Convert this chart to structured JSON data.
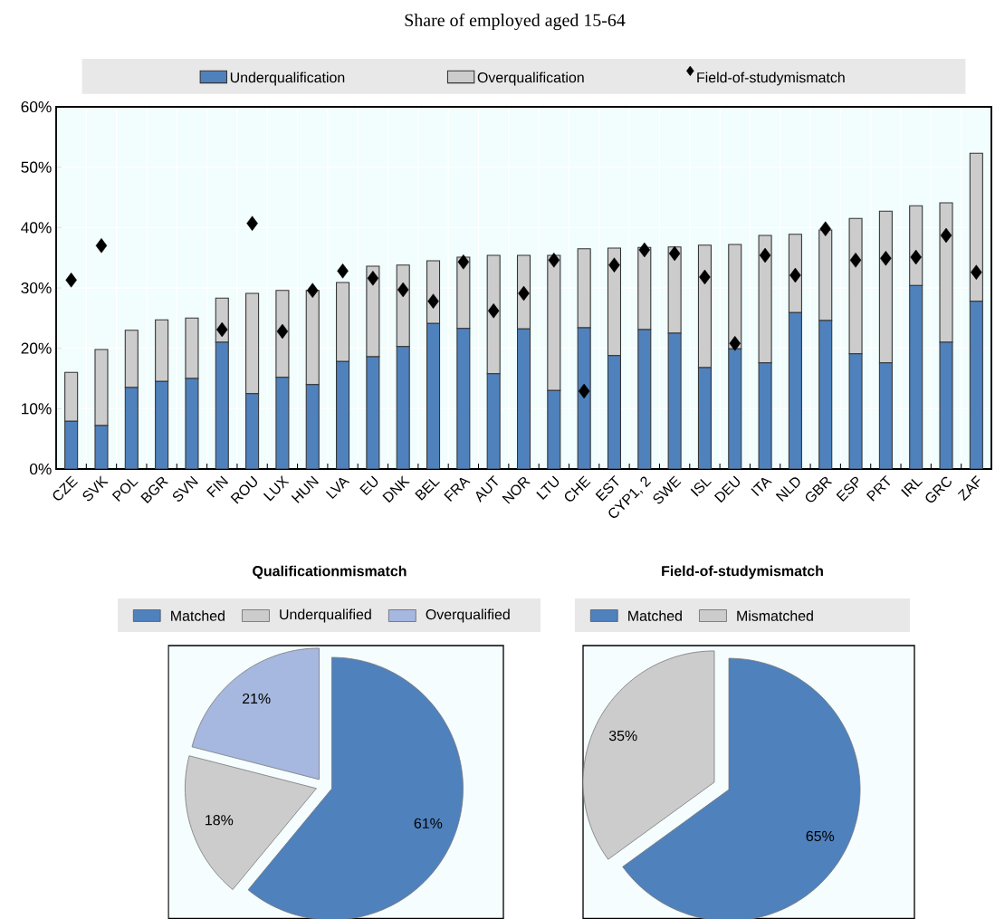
{
  "chart_data": [
    {
      "type": "bar",
      "title": "Share of employed aged 15-64",
      "stacked": true,
      "legend": "top",
      "grid": true,
      "categories": [
        "CZE",
        "SVK",
        "POL",
        "BGR",
        "SVN",
        "FIN",
        "ROU",
        "LUX",
        "HUN",
        "LVA",
        "EU",
        "DNK",
        "BEL",
        "FRA",
        "AUT",
        "NOR",
        "LTU",
        "CHE",
        "EST",
        "CYP1, 2",
        "SWE",
        "ISL",
        "DEU",
        "ITA",
        "NLD",
        "GBR",
        "ESP",
        "PRT",
        "IRL",
        "GRC",
        "ZAF"
      ],
      "series": [
        {
          "name": "Underqualification",
          "color": "#4f81bd",
          "values": [
            7.9,
            7.2,
            13.5,
            14.5,
            15.0,
            21.0,
            12.5,
            15.2,
            14.0,
            17.8,
            18.6,
            20.3,
            24.1,
            23.3,
            15.8,
            23.2,
            13.0,
            23.4,
            18.8,
            23.1,
            22.5,
            16.8,
            19.9,
            17.6,
            25.9,
            24.6,
            19.1,
            17.6,
            30.4,
            21.0,
            27.8
          ]
        },
        {
          "name": "Overqualification",
          "color": "#cccccc",
          "values": [
            8.1,
            12.6,
            9.5,
            10.2,
            10.0,
            7.3,
            16.6,
            14.4,
            15.6,
            13.1,
            15.0,
            13.5,
            10.4,
            11.8,
            19.6,
            12.2,
            22.4,
            13.1,
            17.8,
            13.6,
            14.3,
            20.3,
            17.3,
            21.1,
            13.0,
            15.0,
            22.4,
            25.1,
            13.2,
            23.1,
            24.5
          ]
        },
        {
          "name": "Field-of-studymismatch",
          "type": "scatter",
          "marker": "diamond",
          "color": "#000000",
          "values": [
            31.3,
            37.0,
            null,
            null,
            null,
            23.1,
            40.7,
            22.8,
            29.6,
            32.8,
            31.6,
            29.7,
            27.8,
            34.3,
            26.2,
            29.1,
            34.6,
            12.9,
            33.8,
            36.3,
            35.7,
            31.8,
            20.8,
            35.4,
            32.1,
            39.8,
            34.6,
            34.9,
            35.1,
            38.7,
            32.6
          ]
        }
      ],
      "ylim": [
        0,
        60
      ],
      "yticks": [
        {
          "value": 0,
          "label": "0%"
        },
        {
          "value": 10,
          "label": "10%"
        },
        {
          "value": 20,
          "label": "20%"
        },
        {
          "value": 30,
          "label": "30%"
        },
        {
          "value": 40,
          "label": "40%"
        },
        {
          "value": 50,
          "label": "50%"
        },
        {
          "value": 60,
          "label": "60%"
        }
      ]
    },
    {
      "type": "pie",
      "title": "Qualificationmismatch",
      "legend": "top",
      "categories": [
        "Matched",
        "Underqualified",
        "Overqualified"
      ],
      "values": [
        61,
        18,
        21
      ],
      "colors": [
        "#4f81bd",
        "#cccccc",
        "#a6b8e0"
      ],
      "value_labels": [
        "61%",
        "18%",
        "21%"
      ]
    },
    {
      "type": "pie",
      "title": "Field-of-studymismatch",
      "legend": "top",
      "categories": [
        "Matched",
        "Mismatched"
      ],
      "values": [
        65,
        35
      ],
      "colors": [
        "#4f81bd",
        "#cccccc"
      ],
      "value_labels": [
        "65%",
        "35%"
      ]
    }
  ]
}
